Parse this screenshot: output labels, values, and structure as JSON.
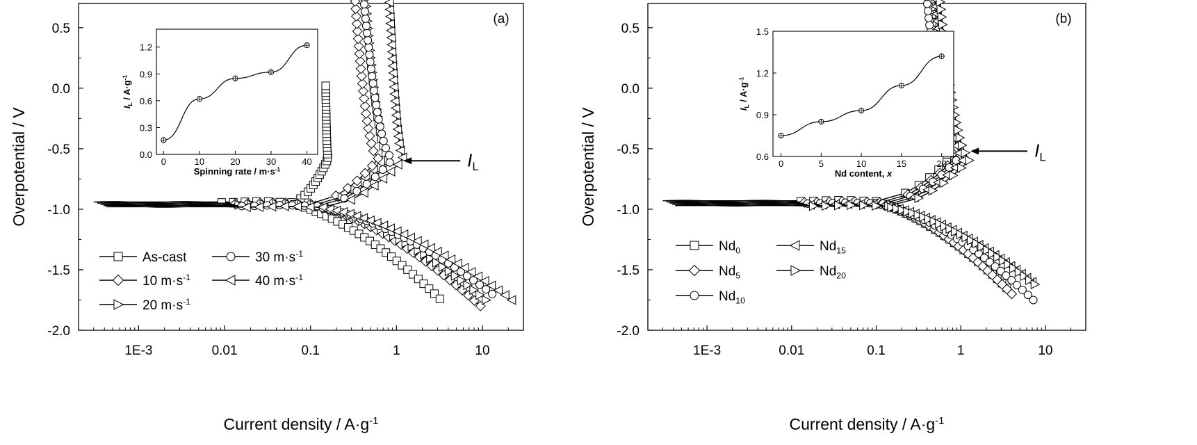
{
  "chart_data": [
    {
      "type": "line",
      "panel_label": "(a)",
      "xlabel": "Current density / A·g",
      "xlabel_sup": "-1",
      "ylabel": "Overpotential / V",
      "xscale": "log",
      "xlim": [
        0.0002,
        30
      ],
      "ylim": [
        -2.0,
        0.7
      ],
      "x_ticks": [
        {
          "value": 0.001,
          "label": "1E-3"
        },
        {
          "value": 0.01,
          "label": "0.01"
        },
        {
          "value": 0.1,
          "label": "0.1"
        },
        {
          "value": 1,
          "label": "1"
        },
        {
          "value": 10,
          "label": "10"
        }
      ],
      "y_ticks": [
        {
          "value": 0.5,
          "label": "0.5"
        },
        {
          "value": 0.0,
          "label": "0.0"
        },
        {
          "value": -0.5,
          "label": "-0.5"
        },
        {
          "value": -1.0,
          "label": "-1.0"
        },
        {
          "value": -1.5,
          "label": "-1.5"
        },
        {
          "value": -2.0,
          "label": "-2.0"
        }
      ],
      "ecorr": -0.94,
      "x_start": 0.0003,
      "series": [
        {
          "name": "As-cast",
          "name_sup": "",
          "marker": "square",
          "icorr": 0.06,
          "il": 0.16,
          "ix": 0.15,
          "ytop": 0.02,
          "cat_end": [
            3.2,
            -1.74
          ],
          "cat_k": 1.1
        },
        {
          "name": "10 m·s",
          "name_sup": "-1",
          "marker": "diamond",
          "icorr": 0.1,
          "il": 0.62,
          "ix": 0.3,
          "ytop": 1.15,
          "cat_end": [
            9.5,
            -1.8
          ],
          "cat_k": 1.05
        },
        {
          "name": "20 m·s",
          "name_sup": "-1",
          "marker": "triangle-right",
          "icorr": 0.11,
          "il": 0.85,
          "ix": 0.4,
          "ytop": 1.1,
          "cat_end": [
            11,
            -1.75
          ],
          "cat_k": 1.1
        },
        {
          "name": "30 m·s",
          "name_sup": "-1",
          "marker": "circle",
          "icorr": 0.12,
          "il": 0.92,
          "ix": 0.38,
          "ytop": 1.05,
          "cat_end": [
            13,
            -1.7
          ],
          "cat_k": 1.15
        },
        {
          "name": "40 m·s",
          "name_sup": "-1",
          "marker": "triangle-left",
          "icorr": 0.14,
          "il": 1.22,
          "ix": 0.8,
          "ytop": 1.0,
          "cat_end": [
            22,
            -1.75
          ],
          "cat_k": 1.2
        }
      ],
      "annotation": {
        "text": "I",
        "sub": "L",
        "arrow_to": [
          1.2,
          -0.6
        ]
      },
      "inset": {
        "xlabel": "Spinning rate / m·s",
        "xlabel_sup": "-1",
        "ylabel": "I",
        "ylabel_sub": "L",
        "ylabel_rest": " / A·g",
        "ylabel_sup": "-1",
        "xlim": [
          -2,
          43
        ],
        "ylim": [
          0.0,
          1.4
        ],
        "x_ticks": [
          0,
          10,
          20,
          30,
          40
        ],
        "y_ticks": [
          {
            "value": 0.0,
            "label": "0.0"
          },
          {
            "value": 0.3,
            "label": "0.3"
          },
          {
            "value": 0.6,
            "label": "0.6"
          },
          {
            "value": 0.9,
            "label": "0.9"
          },
          {
            "value": 1.2,
            "label": "1.2"
          }
        ],
        "x": [
          0,
          10,
          20,
          30,
          40
        ],
        "y": [
          0.16,
          0.62,
          0.85,
          0.92,
          1.22
        ]
      }
    },
    {
      "type": "line",
      "panel_label": "(b)",
      "xlabel": "Current density / A·g",
      "xlabel_sup": "-1",
      "ylabel": "Overpotential / V",
      "xscale": "log",
      "xlim": [
        0.0002,
        30
      ],
      "ylim": [
        -2.0,
        0.7
      ],
      "x_ticks": [
        {
          "value": 0.001,
          "label": "1E-3"
        },
        {
          "value": 0.01,
          "label": "0.01"
        },
        {
          "value": 0.1,
          "label": "0.1"
        },
        {
          "value": 1,
          "label": "1"
        },
        {
          "value": 10,
          "label": "10"
        }
      ],
      "y_ticks": [
        {
          "value": 0.5,
          "label": "0.5"
        },
        {
          "value": 0.0,
          "label": "0.0"
        },
        {
          "value": -0.5,
          "label": "-0.5"
        },
        {
          "value": -1.0,
          "label": "-1.0"
        },
        {
          "value": -1.5,
          "label": "-1.5"
        },
        {
          "value": -2.0,
          "label": "-2.0"
        }
      ],
      "ecorr": -0.93,
      "x_start": 0.0003,
      "series": [
        {
          "name": "Nd",
          "name_sub": "0",
          "marker": "square",
          "icorr": 0.1,
          "il": 0.75,
          "ix": 0.4,
          "ytop": 1.25,
          "cat_end": [
            3.5,
            -1.65
          ],
          "cat_k": 1.2
        },
        {
          "name": "Nd",
          "name_sub": "5",
          "marker": "diamond",
          "icorr": 0.11,
          "il": 0.85,
          "ix": 0.38,
          "ytop": 1.1,
          "cat_end": [
            4.0,
            -1.7
          ],
          "cat_k": 1.15
        },
        {
          "name": "Nd",
          "name_sub": "10",
          "marker": "circle",
          "icorr": 0.12,
          "il": 0.93,
          "ix": 0.36,
          "ytop": 1.05,
          "cat_end": [
            7.2,
            -1.75
          ],
          "cat_k": 1.1
        },
        {
          "name": "Nd",
          "name_sub": "15",
          "marker": "triangle-left",
          "icorr": 0.13,
          "il": 1.11,
          "ix": 0.45,
          "ytop": 1.1,
          "cat_end": [
            7.0,
            -1.6
          ],
          "cat_k": 1.25
        },
        {
          "name": "Nd",
          "name_sub": "20",
          "marker": "triangle-right",
          "icorr": 0.14,
          "il": 1.32,
          "ix": 0.5,
          "ytop": 1.15,
          "cat_end": [
            7.5,
            -1.62
          ],
          "cat_k": 1.3
        }
      ],
      "annotation": {
        "text": "I",
        "sub": "L",
        "arrow_to": [
          1.3,
          -0.52
        ]
      },
      "inset": {
        "xlabel": "Nd content, ",
        "xlabel_italic": "x",
        "ylabel": "I",
        "ylabel_sub": "L",
        "ylabel_rest": " / A·g",
        "ylabel_sup": "-1",
        "xlim": [
          -1,
          21.5
        ],
        "ylim": [
          0.6,
          1.5
        ],
        "x_ticks": [
          0,
          5,
          10,
          15,
          20
        ],
        "y_ticks": [
          {
            "value": 0.6,
            "label": "0.6"
          },
          {
            "value": 0.9,
            "label": "0.9"
          },
          {
            "value": 1.2,
            "label": "1.2"
          },
          {
            "value": 1.5,
            "label": "1.5"
          }
        ],
        "x": [
          0,
          5,
          10,
          15,
          20
        ],
        "y": [
          0.75,
          0.85,
          0.93,
          1.11,
          1.32
        ]
      }
    }
  ]
}
